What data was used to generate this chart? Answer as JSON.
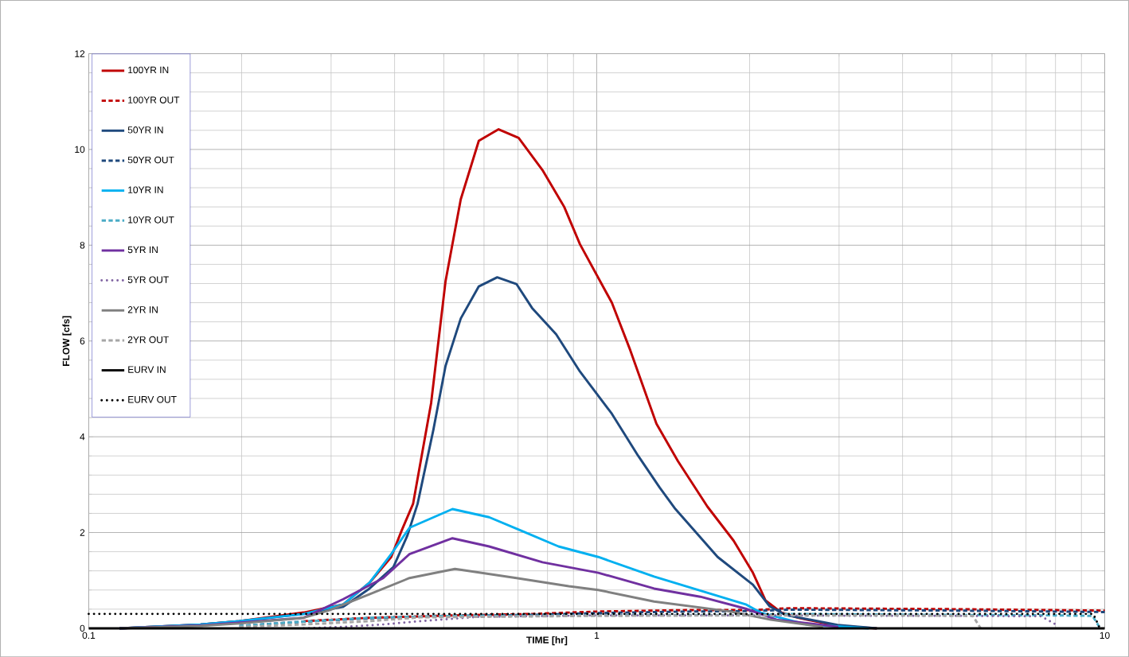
{
  "chart_data": {
    "type": "line",
    "xlabel": "TIME [hr]",
    "ylabel": "FLOW [cfs]",
    "log": "x",
    "grid": true,
    "legend": "top left",
    "xlim": [
      0.1,
      10
    ],
    "xticks": [
      0.1,
      1,
      10
    ],
    "ylim": [
      0,
      12
    ],
    "yticks": [
      0,
      2,
      4,
      6,
      8,
      10,
      12
    ],
    "series": [
      {
        "name": "100YR IN",
        "color": "#c00000",
        "line_style": "solid",
        "x": [
          0.115,
          0.166,
          0.198,
          0.265,
          0.317,
          0.357,
          0.394,
          0.413,
          0.435,
          0.472,
          0.504,
          0.54,
          0.586,
          0.641,
          0.702,
          0.782,
          0.863,
          0.927,
          1.071,
          1.164,
          1.311,
          1.445,
          1.652,
          1.86,
          2.03,
          2.15,
          2.31,
          2.49,
          2.98,
          3.56
        ],
        "values": [
          0,
          0.08,
          0.15,
          0.33,
          0.5,
          0.95,
          1.49,
          2.04,
          2.6,
          4.7,
          7.25,
          8.96,
          10.18,
          10.42,
          10.24,
          9.57,
          8.8,
          8.02,
          6.8,
          5.81,
          4.27,
          3.49,
          2.54,
          1.83,
          1.16,
          0.58,
          0.33,
          0.22,
          0.05,
          0
        ]
      },
      {
        "name": "100YR OUT",
        "color": "#c00000",
        "line_style": "dashed",
        "x": [
          0.265,
          0.357,
          0.52,
          0.746,
          1.0,
          1.5,
          2.03,
          2.4,
          3.5,
          5,
          8,
          10
        ],
        "values": [
          0.15,
          0.22,
          0.27,
          0.3,
          0.35,
          0.38,
          0.38,
          0.42,
          0.41,
          0.4,
          0.38,
          0.37
        ]
      },
      {
        "name": "50YR IN",
        "color": "#1f497d",
        "line_style": "solid",
        "x": [
          0.115,
          0.166,
          0.198,
          0.265,
          0.317,
          0.357,
          0.398,
          0.424,
          0.444,
          0.477,
          0.504,
          0.54,
          0.586,
          0.637,
          0.695,
          0.746,
          0.832,
          0.927,
          1.071,
          1.207,
          1.33,
          1.429,
          1.73,
          2.03,
          2.19,
          2.35,
          2.98,
          3.56
        ],
        "values": [
          0,
          0.08,
          0.15,
          0.3,
          0.45,
          0.83,
          1.28,
          1.94,
          2.6,
          4.15,
          5.48,
          6.47,
          7.14,
          7.33,
          7.19,
          6.69,
          6.14,
          5.36,
          4.48,
          3.6,
          2.94,
          2.49,
          1.49,
          0.91,
          0.46,
          0.28,
          0.07,
          0
        ]
      },
      {
        "name": "50YR OUT",
        "color": "#1f497d",
        "line_style": "dashed",
        "x": [
          0.198,
          0.265,
          0.357,
          0.52,
          0.746,
          1.0,
          1.5,
          2.03,
          2.4,
          3.5,
          5,
          8,
          10
        ],
        "values": [
          0.05,
          0.14,
          0.21,
          0.26,
          0.28,
          0.32,
          0.35,
          0.36,
          0.39,
          0.38,
          0.37,
          0.35,
          0.34
        ]
      },
      {
        "name": "10YR IN",
        "color": "#00b0f0",
        "line_style": "solid",
        "x": [
          0.115,
          0.166,
          0.198,
          0.265,
          0.317,
          0.357,
          0.394,
          0.428,
          0.52,
          0.614,
          0.71,
          0.841,
          1.007,
          1.297,
          1.965,
          2.11,
          2.59,
          3.43
        ],
        "values": [
          0,
          0.08,
          0.15,
          0.3,
          0.5,
          0.95,
          1.55,
          2.1,
          2.49,
          2.32,
          2.04,
          1.71,
          1.49,
          1.08,
          0.5,
          0.32,
          0.08,
          0
        ]
      },
      {
        "name": "10YR OUT",
        "color": "#4bacc6",
        "line_style": "dashed",
        "x": [
          0.198,
          0.265,
          0.357,
          0.52,
          1.0,
          2.03,
          2.4,
          3.5,
          5,
          8,
          9.46,
          9.8
        ],
        "values": [
          0.05,
          0.14,
          0.22,
          0.26,
          0.27,
          0.28,
          0.3,
          0.29,
          0.28,
          0.27,
          0.26,
          0
        ]
      },
      {
        "name": "5YR IN",
        "color": "#7030a0",
        "line_style": "solid",
        "x": [
          0.115,
          0.166,
          0.198,
          0.265,
          0.317,
          0.38,
          0.428,
          0.52,
          0.614,
          0.782,
          1.007,
          1.297,
          1.599,
          1.965,
          2.26,
          2.99
        ],
        "values": [
          0,
          0.06,
          0.12,
          0.22,
          0.61,
          1.05,
          1.55,
          1.88,
          1.71,
          1.38,
          1.16,
          0.83,
          0.66,
          0.41,
          0.18,
          0.03
        ]
      },
      {
        "name": "5YR OUT",
        "color": "#8064a2",
        "line_style": "dotted",
        "x": [
          0.265,
          0.317,
          0.38,
          0.45,
          0.586,
          1.0,
          2.03,
          3.5,
          5,
          7.5,
          8.04
        ],
        "values": [
          0,
          0.03,
          0.08,
          0.15,
          0.24,
          0.27,
          0.27,
          0.26,
          0.26,
          0.25,
          0.07
        ]
      },
      {
        "name": "2YR IN",
        "color": "#808080",
        "line_style": "solid",
        "x": [
          0.115,
          0.166,
          0.198,
          0.265,
          0.298,
          0.357,
          0.428,
          0.526,
          0.695,
          0.881,
          1.007,
          1.297,
          1.835,
          2.2,
          2.79
        ],
        "values": [
          0,
          0.05,
          0.1,
          0.22,
          0.38,
          0.71,
          1.05,
          1.24,
          1.05,
          0.88,
          0.8,
          0.56,
          0.35,
          0.18,
          0.03
        ]
      },
      {
        "name": "2YR OUT",
        "color": "#a6a6a6",
        "line_style": "dashed",
        "x": [
          0.198,
          0.265,
          0.357,
          0.45,
          1.0,
          2.03,
          3.5,
          5.5,
          5.7
        ],
        "values": [
          0.03,
          0.08,
          0.15,
          0.23,
          0.26,
          0.27,
          0.27,
          0.26,
          0
        ]
      },
      {
        "name": "EURV IN",
        "color": "#000000",
        "line_style": "solid",
        "x": [
          0.1,
          10
        ],
        "values": [
          0,
          0
        ]
      },
      {
        "name": "EURV OUT",
        "color": "#000000",
        "line_style": "dotted",
        "x": [
          0.1,
          9.5,
          9.76
        ],
        "values": [
          0.3,
          0.3,
          0.02
        ]
      }
    ]
  }
}
